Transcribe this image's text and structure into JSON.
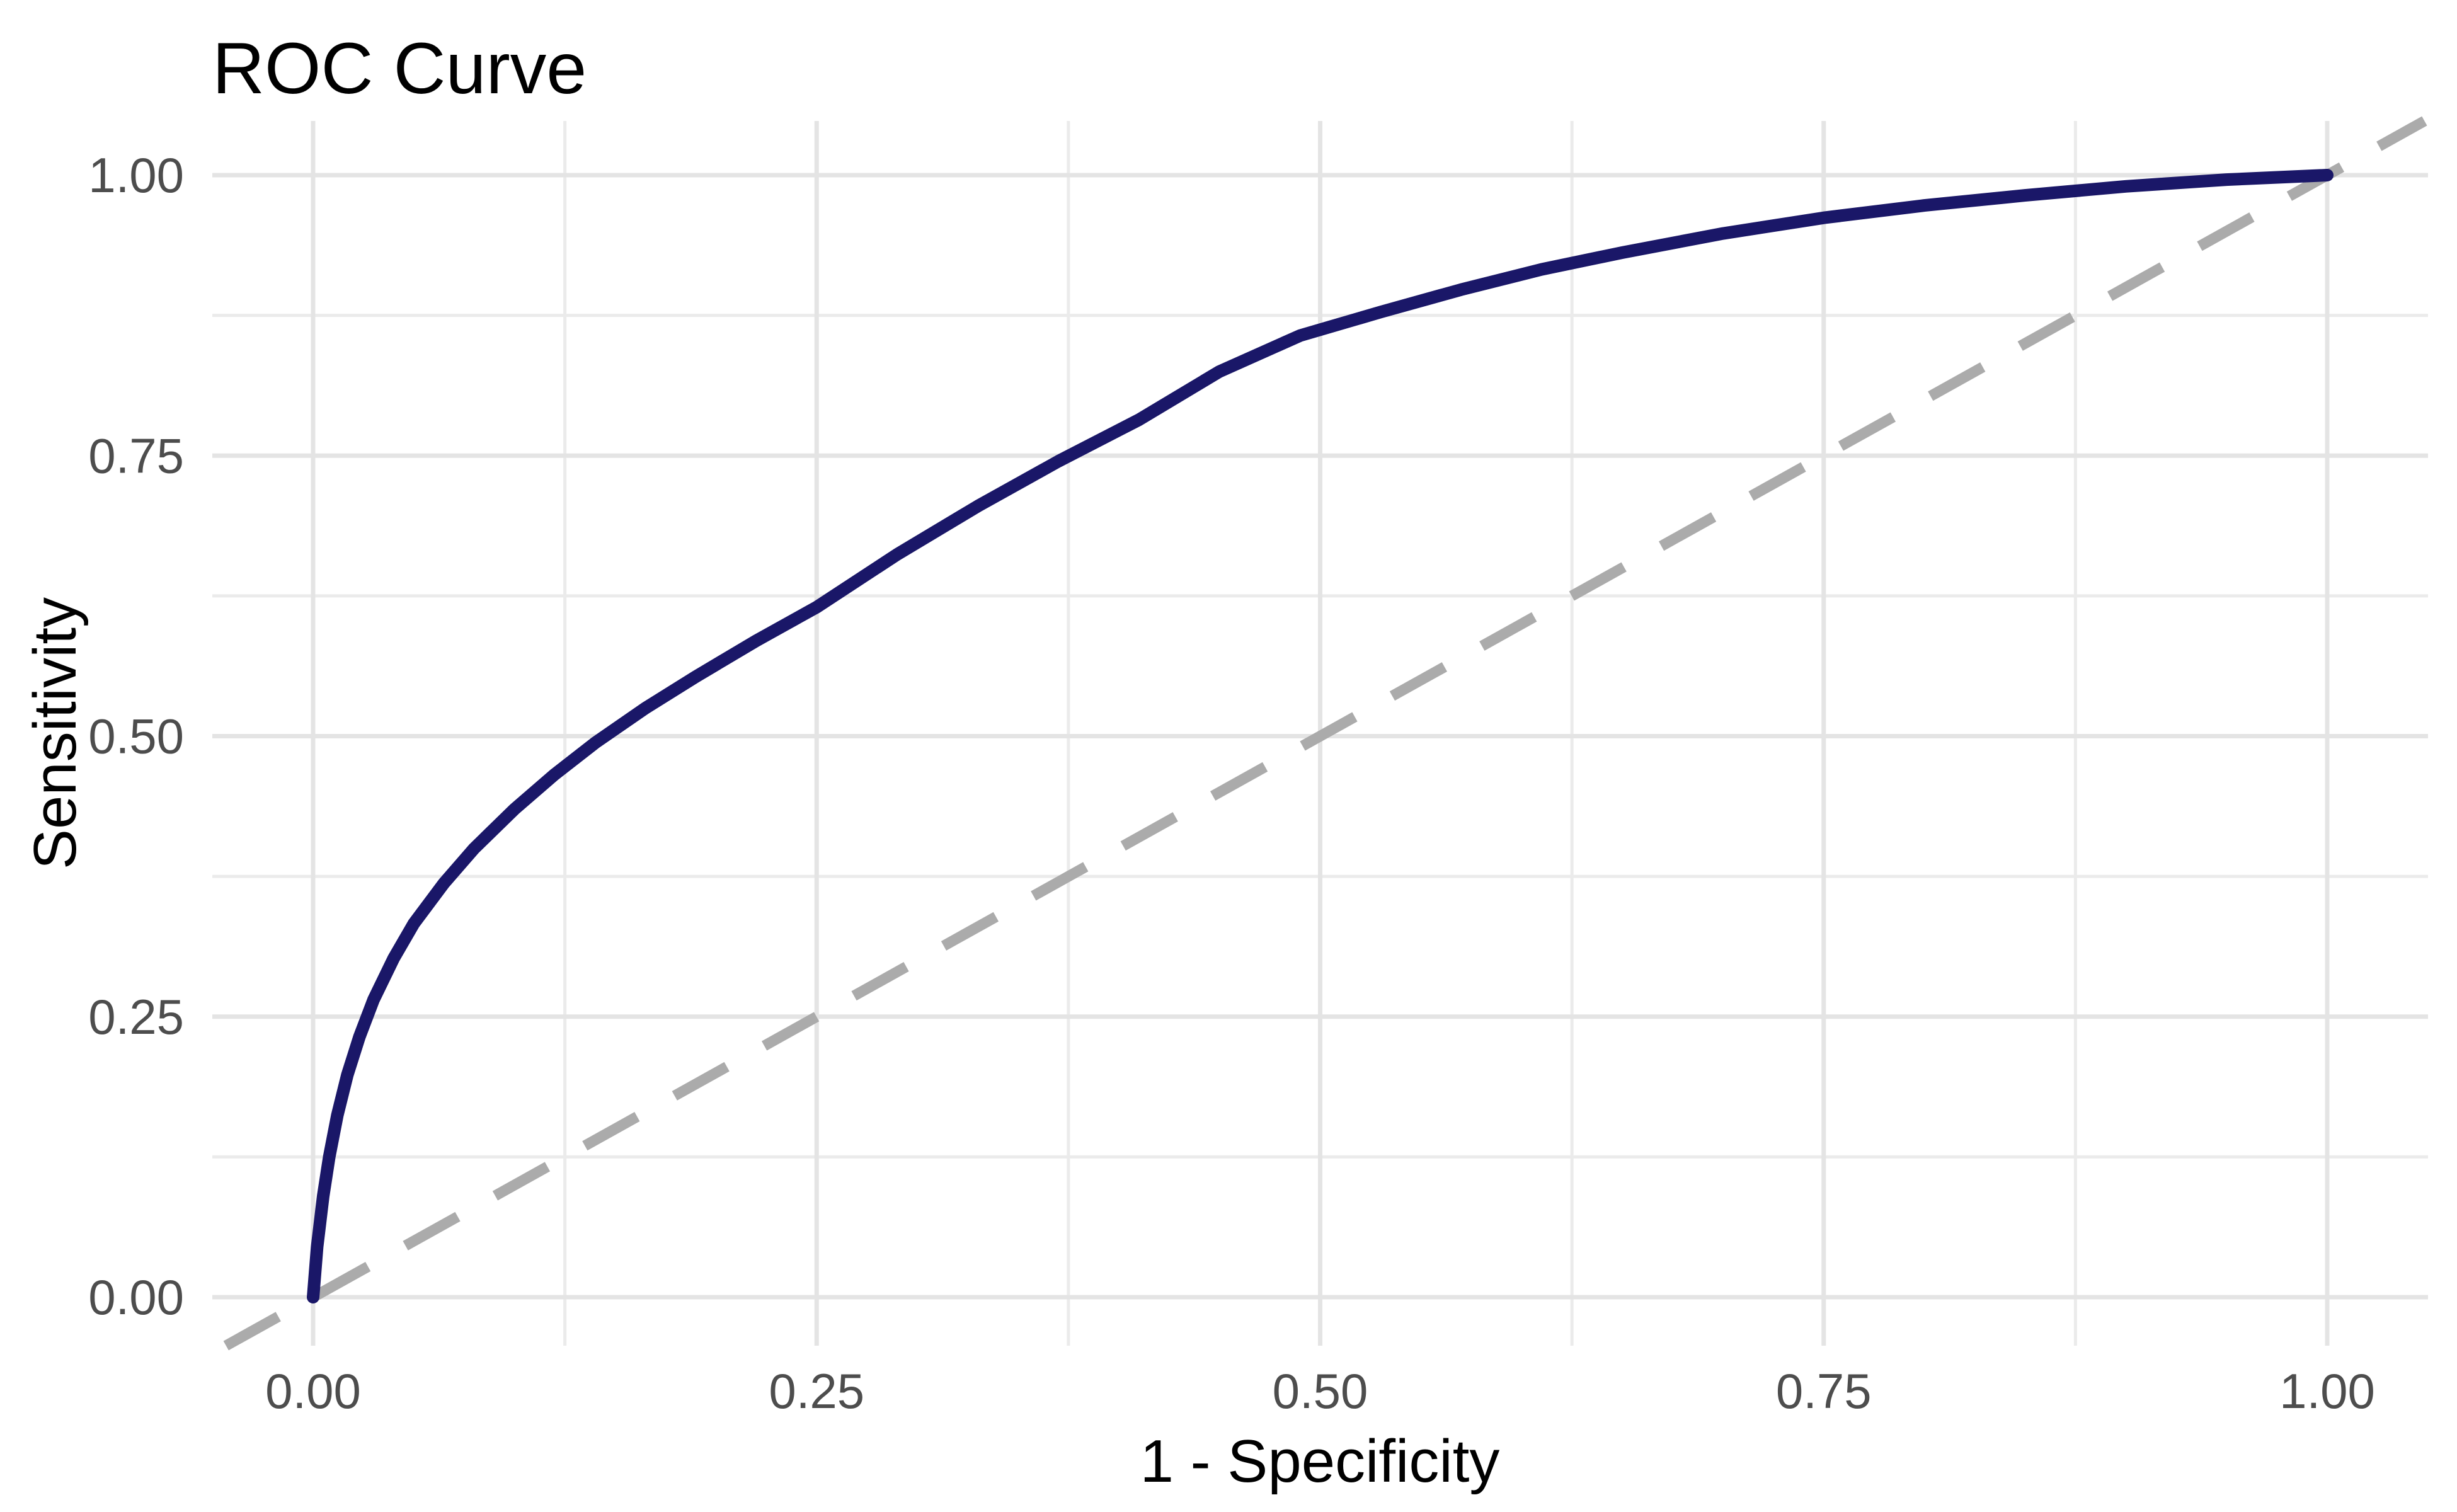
{
  "chart_data": {
    "type": "line",
    "title": "ROC Curve",
    "xlabel": "1 - Specificity",
    "ylabel": "Sensitivity",
    "xlim": [
      0,
      1
    ],
    "ylim": [
      0,
      1
    ],
    "grid": "major and minor gridlines, light gray on white background",
    "legend": "none",
    "x_ticks": [
      {
        "value": 0.0,
        "label": "0.00"
      },
      {
        "value": 0.25,
        "label": "0.25"
      },
      {
        "value": 0.5,
        "label": "0.50"
      },
      {
        "value": 0.75,
        "label": "0.75"
      },
      {
        "value": 1.0,
        "label": "1.00"
      }
    ],
    "y_ticks": [
      {
        "value": 0.0,
        "label": "0.00"
      },
      {
        "value": 0.25,
        "label": "0.25"
      },
      {
        "value": 0.5,
        "label": "0.50"
      },
      {
        "value": 0.75,
        "label": "0.75"
      },
      {
        "value": 1.0,
        "label": "1.00"
      }
    ],
    "x_minor_ticks": [
      0.125,
      0.375,
      0.625,
      0.875
    ],
    "y_minor_ticks": [
      0.125,
      0.375,
      0.625,
      0.875
    ],
    "colors": {
      "background": "#FFFFFF",
      "roc_curve": "#1A1768",
      "chance_line": "#ABABAB",
      "grid_major": "#E4E4E4",
      "grid_minor": "#EBEBEB",
      "tick_text": "#4D4D4D",
      "title_text": "#000000"
    },
    "series": [
      {
        "name": "ROC curve",
        "style": "solid",
        "color": "#1A1768",
        "stroke_width": 20,
        "points": [
          [
            0.0,
            0.0
          ],
          [
            0.002,
            0.045
          ],
          [
            0.005,
            0.09
          ],
          [
            0.008,
            0.125
          ],
          [
            0.012,
            0.162
          ],
          [
            0.017,
            0.198
          ],
          [
            0.023,
            0.232
          ],
          [
            0.03,
            0.265
          ],
          [
            0.04,
            0.302
          ],
          [
            0.05,
            0.333
          ],
          [
            0.065,
            0.369
          ],
          [
            0.08,
            0.4
          ],
          [
            0.1,
            0.435
          ],
          [
            0.12,
            0.466
          ],
          [
            0.14,
            0.494
          ],
          [
            0.165,
            0.525
          ],
          [
            0.19,
            0.553
          ],
          [
            0.22,
            0.585
          ],
          [
            0.25,
            0.615
          ],
          [
            0.29,
            0.662
          ],
          [
            0.33,
            0.705
          ],
          [
            0.37,
            0.745
          ],
          [
            0.41,
            0.782
          ],
          [
            0.45,
            0.825
          ],
          [
            0.49,
            0.857
          ],
          [
            0.53,
            0.878
          ],
          [
            0.57,
            0.898
          ],
          [
            0.61,
            0.916
          ],
          [
            0.65,
            0.931
          ],
          [
            0.7,
            0.948
          ],
          [
            0.75,
            0.962
          ],
          [
            0.8,
            0.973
          ],
          [
            0.85,
            0.982
          ],
          [
            0.9,
            0.99
          ],
          [
            0.95,
            0.996
          ],
          [
            1.0,
            1.0
          ]
        ]
      },
      {
        "name": "chance diagonal (y = x)",
        "style": "dashed",
        "color": "#ABABAB",
        "stroke_width": 17,
        "dash_pattern": [
          95,
          68
        ],
        "points": [
          [
            0,
            0
          ],
          [
            1,
            1
          ]
        ],
        "extends_to_panel_edges": true
      }
    ]
  }
}
